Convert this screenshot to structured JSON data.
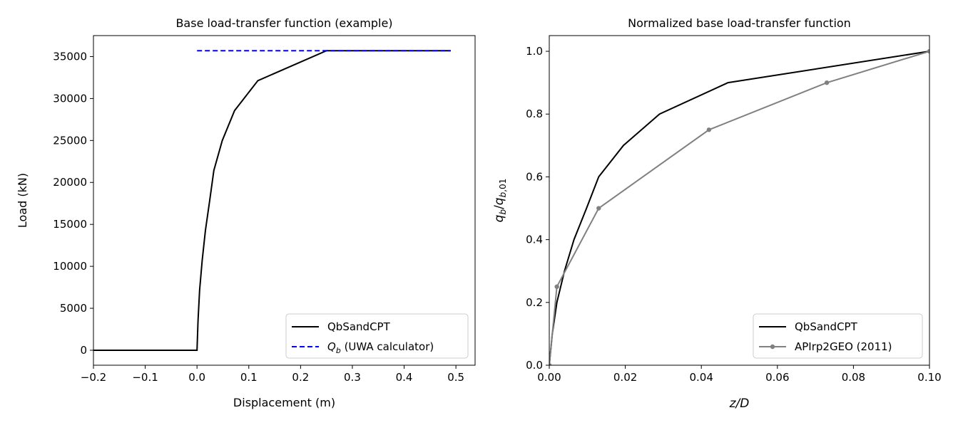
{
  "chart_data": [
    {
      "type": "line",
      "title": "Base load-transfer function (example)",
      "xlabel": "Displacement (m)",
      "ylabel": "Load (kN)",
      "xlim": [
        -0.2,
        0.537
      ],
      "ylim": [
        -1785,
        37500
      ],
      "xticks": [
        -0.2,
        -0.1,
        0.0,
        0.1,
        0.2,
        0.3,
        0.4,
        0.5
      ],
      "xtick_labels": [
        "−0.2",
        "−0.1",
        "0.0",
        "0.1",
        "0.2",
        "0.3",
        "0.4",
        "0.5"
      ],
      "yticks": [
        0,
        5000,
        10000,
        15000,
        20000,
        25000,
        30000,
        35000
      ],
      "ytick_labels": [
        "0",
        "5000",
        "10000",
        "15000",
        "20000",
        "25000",
        "30000",
        "35000"
      ],
      "legend": "lower-right",
      "grid": false,
      "series": [
        {
          "name": "QbSandCPT",
          "color": "#000000",
          "style": "solid",
          "x": [
            -0.2,
            0.0,
            0.002,
            0.005,
            0.01,
            0.01625,
            0.0245,
            0.0325,
            0.04875,
            0.0725,
            0.1175,
            0.25,
            0.49
          ],
          "y": [
            0,
            0,
            3570,
            7140,
            10710,
            14280,
            17850,
            21420,
            24990,
            28560,
            32130,
            35700,
            35700
          ]
        },
        {
          "name": "Q_b (UWA calculator)",
          "legend_main": "Q",
          "legend_sub": "b",
          "legend_rest": " (UWA calculator)",
          "color": "#0000ff",
          "style": "dashed",
          "x": [
            0.0,
            0.49
          ],
          "y": [
            35700,
            35700
          ]
        }
      ]
    },
    {
      "type": "line",
      "title": "Normalized base load-transfer function",
      "xlabel": "z/D",
      "ylabel": "q_b/q_b,01",
      "xlim": [
        0,
        0.1
      ],
      "ylim": [
        0,
        1.05
      ],
      "xticks": [
        0,
        0.02,
        0.04,
        0.06,
        0.08,
        0.1
      ],
      "xtick_labels": [
        "0.00",
        "0.02",
        "0.04",
        "0.06",
        "0.08",
        "0.10"
      ],
      "yticks": [
        0,
        0.2,
        0.4,
        0.6,
        0.8,
        1.0
      ],
      "ytick_labels": [
        "0.0",
        "0.2",
        "0.4",
        "0.6",
        "0.8",
        "1.0"
      ],
      "legend": "lower-right",
      "grid": false,
      "series": [
        {
          "name": "QbSandCPT",
          "color": "#000000",
          "style": "solid",
          "marker": false,
          "x": [
            0,
            0.0008,
            0.002,
            0.004,
            0.0065,
            0.0098,
            0.013,
            0.0195,
            0.029,
            0.047,
            0.1
          ],
          "y": [
            0,
            0.1,
            0.2,
            0.3,
            0.4,
            0.5,
            0.6,
            0.7,
            0.8,
            0.9,
            1.0
          ]
        },
        {
          "name": "APIrp2GEO (2011)",
          "color": "#808080",
          "style": "solid",
          "marker": true,
          "x": [
            0,
            0.002,
            0.013,
            0.042,
            0.073,
            0.1
          ],
          "y": [
            0,
            0.25,
            0.5,
            0.75,
            0.9,
            1.0
          ]
        }
      ]
    }
  ]
}
